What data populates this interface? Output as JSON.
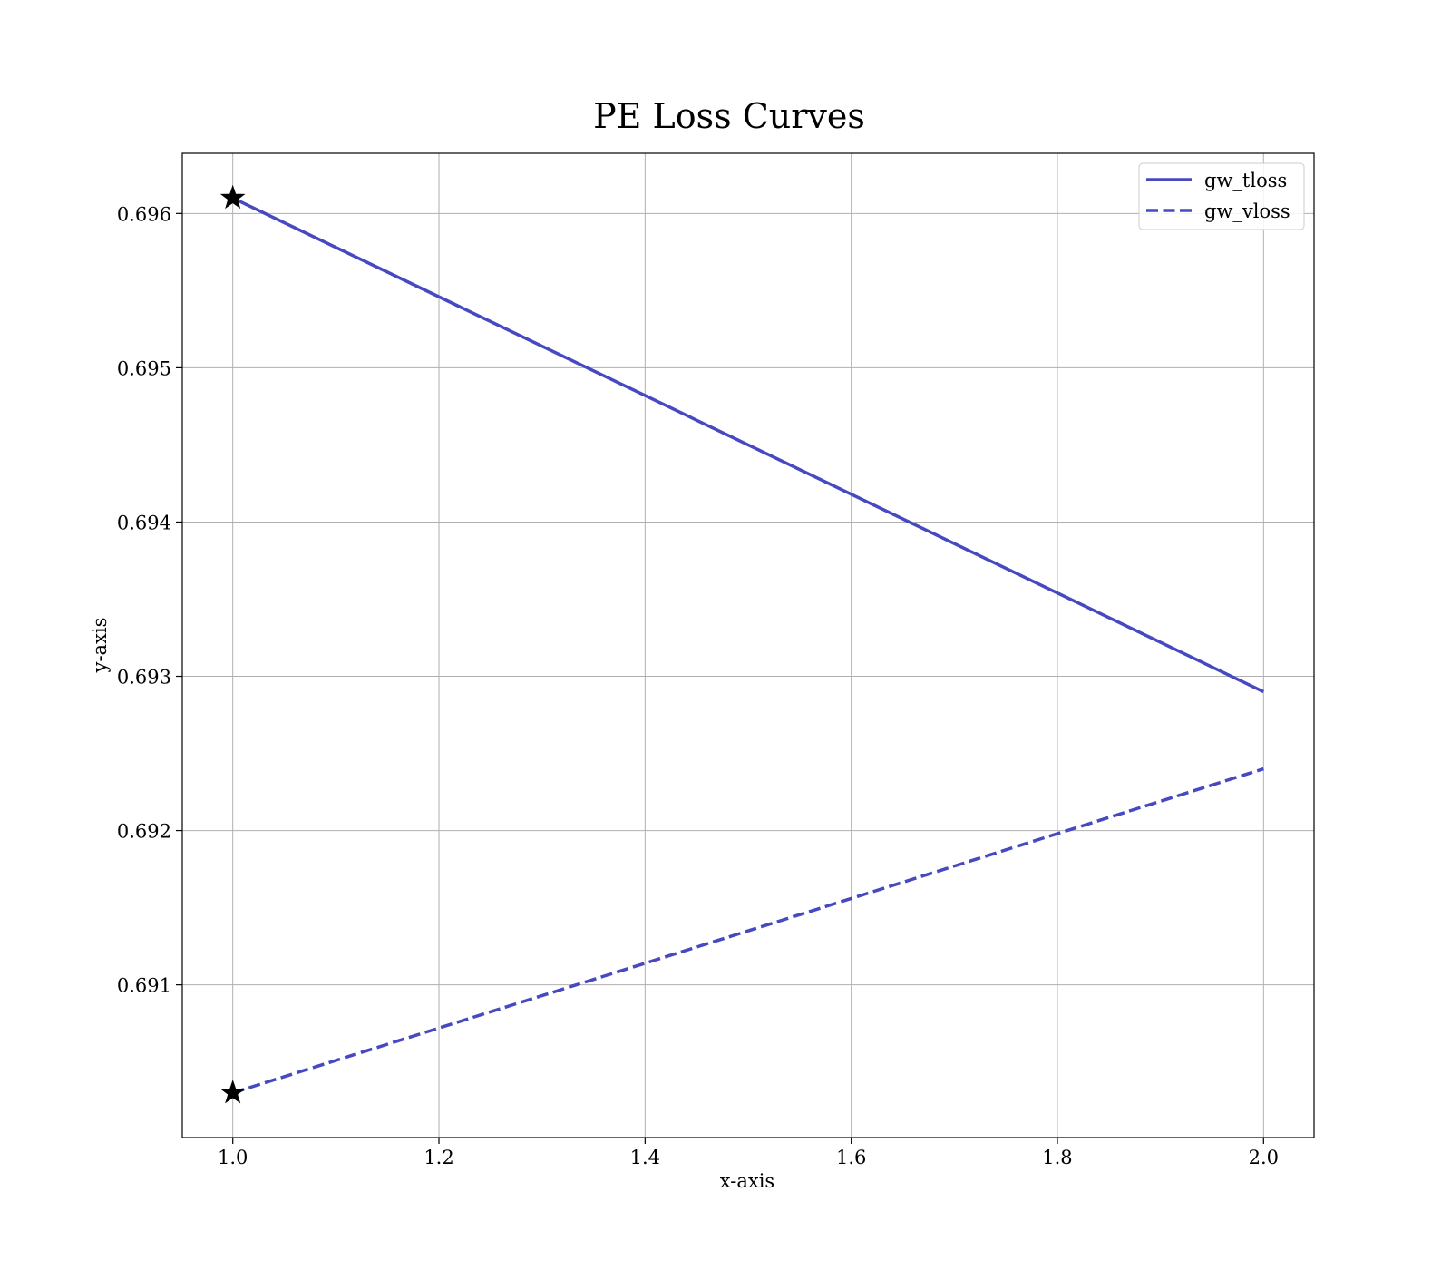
{
  "chart_data": {
    "type": "line",
    "title": "PE Loss Curves",
    "xlabel": "x-axis",
    "ylabel": "y-axis",
    "xlim": [
      0.951,
      2.049
    ],
    "ylim": [
      0.69001,
      0.69639
    ],
    "x_ticks": [
      1.0,
      1.2,
      1.4,
      1.6,
      1.8,
      2.0
    ],
    "x_tick_labels": [
      "1.0",
      "1.2",
      "1.4",
      "1.6",
      "1.8",
      "2.0"
    ],
    "y_ticks": [
      0.691,
      0.692,
      0.693,
      0.694,
      0.695,
      0.696
    ],
    "y_tick_labels": [
      "0.691",
      "0.692",
      "0.693",
      "0.694",
      "0.695",
      "0.696"
    ],
    "grid": true,
    "legend_position": "top-right",
    "series": [
      {
        "name": "gw_tloss",
        "style": "solid",
        "color": "#4649c2",
        "x": [
          1.0,
          2.0
        ],
        "y": [
          0.6961,
          0.6929
        ],
        "marker_points": [
          {
            "x": 1.0,
            "y": 0.6961
          }
        ]
      },
      {
        "name": "gw_vloss",
        "style": "dashed",
        "color": "#4649c2",
        "x": [
          1.0,
          2.0
        ],
        "y": [
          0.6903,
          0.6924
        ],
        "marker_points": [
          {
            "x": 1.0,
            "y": 0.6903
          }
        ]
      }
    ]
  }
}
